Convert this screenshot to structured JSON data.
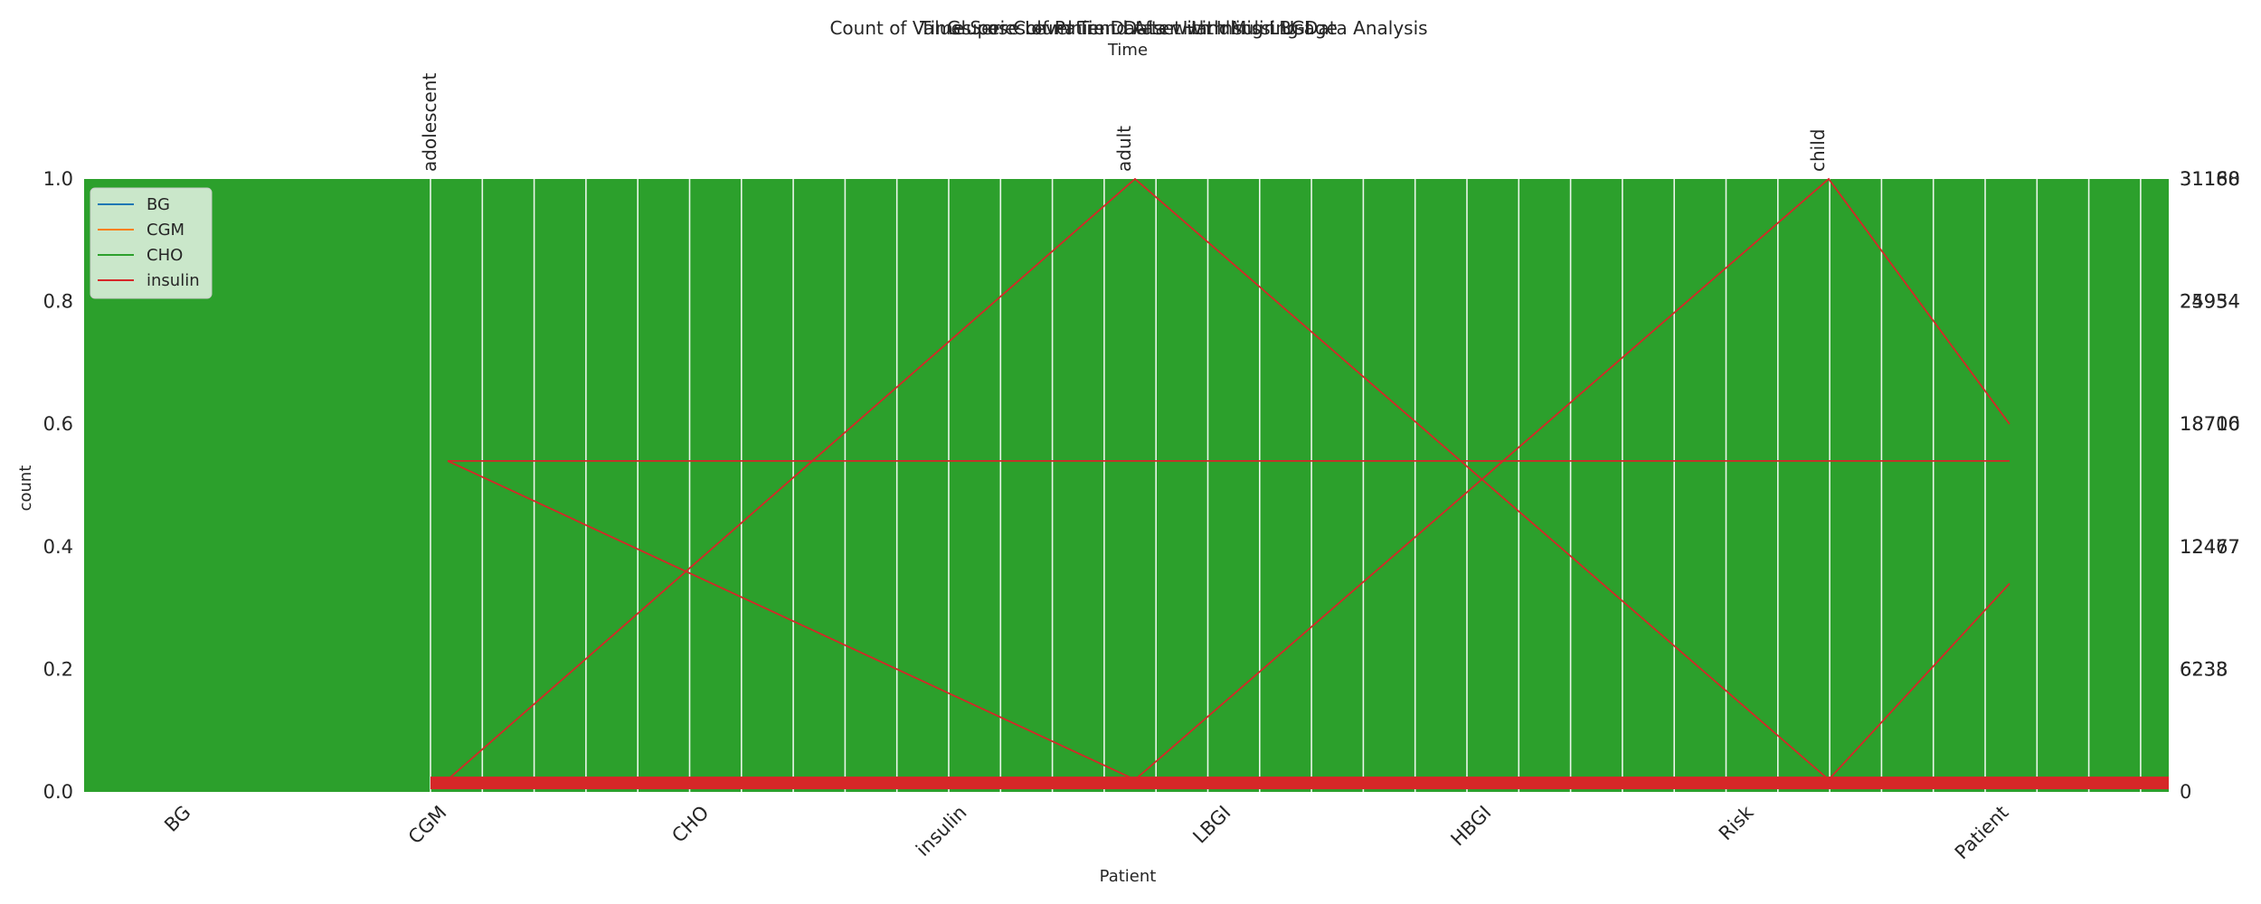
{
  "chart_data": {
    "type": "bar",
    "titles": [
      "Count of Values per Column in Dataset with Missing Data Analysis",
      "Time Series of Patient Data with Insulin Usage",
      "Glucose Level Trend After Handling LBGI"
    ],
    "top_xlabel": "Time",
    "xlabel": "Patient",
    "ylabel": "count",
    "ylim": [
      0,
      1.0
    ],
    "yticks": [
      0.0,
      0.2,
      0.4,
      0.6,
      0.8,
      1.0
    ],
    "ytick_labels": [
      "0.0",
      "0.2",
      "0.4",
      "0.6",
      "0.8",
      "1.0"
    ],
    "right_ytick_labels": [
      "0",
      "6238\n6233",
      "12477\n12467",
      "18700\n18716",
      "24934\n25954",
      "31160\n31188"
    ],
    "categories": [
      "BG",
      "CGM",
      "CHO",
      "insulin",
      "LBGI",
      "HBGI",
      "Risk",
      "Patient"
    ],
    "top_categories": [
      "adolescent",
      "adult",
      "child"
    ],
    "legend": {
      "placement": "upper-left",
      "entries": [
        {
          "name": "BG",
          "color": "#1f77b4"
        },
        {
          "name": "CGM",
          "color": "#ff7f0e"
        },
        {
          "name": "CHO",
          "color": "#2ca02c"
        },
        {
          "name": "insulin",
          "color": "#d62728"
        }
      ]
    },
    "series": [
      {
        "name": "count",
        "color": "#2ca02c",
        "values": [
          1.0,
          1.0,
          1.0,
          1.0,
          1.0,
          1.0,
          1.0,
          1.0
        ]
      }
    ],
    "insulin_lines": [
      {
        "x": [
          "CGM",
          "adult",
          "child",
          "Patient"
        ],
        "y": [
          0.02,
          1.0,
          0.02,
          0.34
        ]
      },
      {
        "x": [
          "CGM",
          "adult",
          "child",
          "Patient"
        ],
        "y": [
          0.54,
          0.02,
          1.0,
          0.6
        ]
      },
      {
        "x": [
          "CGM",
          "Patient"
        ],
        "y": [
          0.54,
          0.54
        ]
      }
    ],
    "colors": {
      "bar": "#2ca02c",
      "line": "#d62728",
      "text": "#262626"
    }
  }
}
